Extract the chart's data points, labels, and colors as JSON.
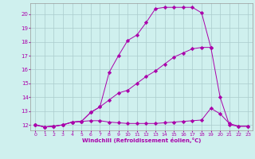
{
  "xlabel": "Windchill (Refroidissement éolien,°C)",
  "bg_color": "#cff0ee",
  "grid_color": "#aacccc",
  "line_color": "#aa00aa",
  "xlim": [
    -0.5,
    23.5
  ],
  "ylim": [
    11.6,
    20.8
  ],
  "xticks": [
    0,
    1,
    2,
    3,
    4,
    5,
    6,
    7,
    8,
    9,
    10,
    11,
    12,
    13,
    14,
    15,
    16,
    17,
    18,
    19,
    20,
    21,
    22,
    23
  ],
  "yticks": [
    12,
    13,
    14,
    15,
    16,
    17,
    18,
    19,
    20
  ],
  "series1_x": [
    0,
    1,
    2,
    3,
    4,
    5,
    6,
    7,
    8,
    9,
    10,
    11,
    12,
    13,
    14,
    15,
    16,
    17,
    18,
    19,
    20,
    21,
    22,
    23
  ],
  "series1_y": [
    12.0,
    11.85,
    11.9,
    12.0,
    12.2,
    12.25,
    12.3,
    12.3,
    12.2,
    12.15,
    12.1,
    12.1,
    12.1,
    12.1,
    12.15,
    12.2,
    12.25,
    12.3,
    12.35,
    13.2,
    12.8,
    12.1,
    11.9,
    11.9
  ],
  "series2_x": [
    0,
    1,
    2,
    3,
    4,
    5,
    6,
    7,
    8,
    9,
    10,
    11,
    12,
    13,
    14,
    15,
    16,
    17,
    18,
    19
  ],
  "series2_y": [
    12.0,
    11.85,
    11.9,
    12.0,
    12.2,
    12.25,
    12.9,
    13.3,
    13.8,
    14.3,
    14.5,
    15.0,
    15.5,
    15.9,
    16.4,
    16.9,
    17.2,
    17.5,
    17.6,
    17.6
  ],
  "series3_x": [
    0,
    1,
    2,
    3,
    4,
    5,
    6,
    7,
    8,
    9,
    10,
    11,
    12,
    13,
    14,
    15,
    16,
    17,
    18,
    19,
    20,
    21,
    22,
    23
  ],
  "series3_y": [
    12.0,
    11.85,
    11.9,
    12.0,
    12.2,
    12.25,
    12.9,
    13.3,
    15.8,
    17.0,
    18.1,
    18.5,
    19.4,
    20.4,
    20.5,
    20.5,
    20.5,
    20.5,
    20.1,
    17.6,
    14.0,
    12.0,
    11.9,
    11.9
  ]
}
